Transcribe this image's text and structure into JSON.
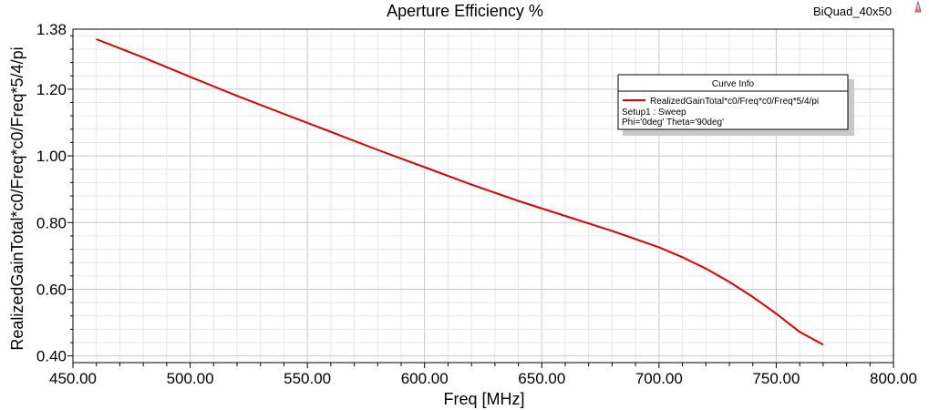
{
  "project_name": "BiQuad_40x50",
  "chart_data": {
    "type": "line",
    "title": "Aperture Efficiency %",
    "xlabel": "Freq [MHz]",
    "ylabel": "RealizedGainTotal*c0/Freq*c0/Freq*5/4/pi",
    "xlim": [
      450,
      800
    ],
    "ylim": [
      0.38,
      1.38
    ],
    "x_ticks": [
      "450.00",
      "500.00",
      "550.00",
      "600.00",
      "650.00",
      "700.00",
      "750.00",
      "800.00"
    ],
    "y_ticks": [
      "0.40",
      "0.60",
      "0.80",
      "1.00",
      "1.20",
      "1.38"
    ],
    "grid": true,
    "legend": {
      "title": "Curve Info",
      "placement": "top-right",
      "entries": [
        {
          "name": "RealizedGainTotal*c0/Freq*c0/Freq*5/4/pi",
          "lines": [
            "Setup1 : Sweep",
            "Phi='0deg' Theta='90deg'"
          ]
        }
      ]
    },
    "series": [
      {
        "name": "RealizedGainTotal*c0/Freq*c0/Freq*5/4/pi",
        "color": "#dd0000",
        "x": [
          460,
          480,
          500,
          520,
          540,
          560,
          580,
          600,
          620,
          640,
          660,
          680,
          700,
          710,
          720,
          730,
          740,
          750,
          760,
          770
        ],
        "y": [
          1.35,
          1.295,
          1.237,
          1.18,
          1.126,
          1.072,
          1.018,
          0.966,
          0.914,
          0.865,
          0.82,
          0.775,
          0.726,
          0.696,
          0.662,
          0.622,
          0.577,
          0.527,
          0.472,
          0.434
        ]
      }
    ]
  }
}
